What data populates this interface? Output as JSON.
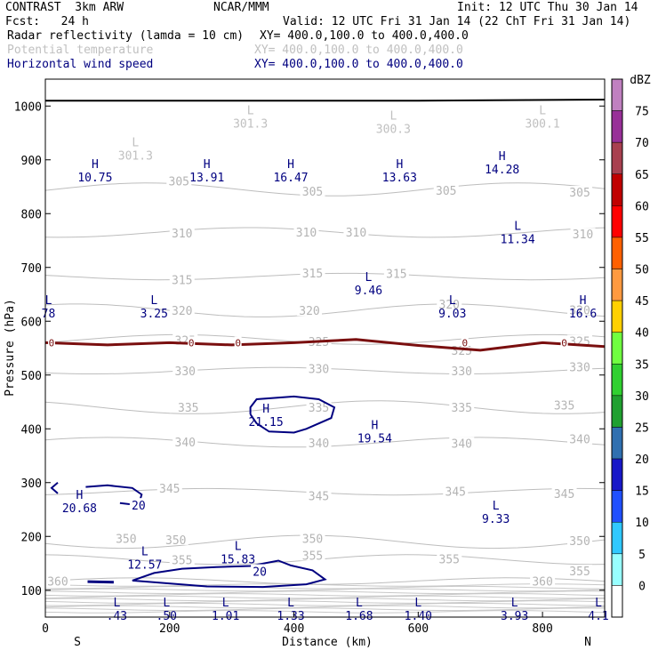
{
  "header": {
    "title": "CONTRAST  3km ARW",
    "center": "NCAR/MMM",
    "init": "Init: 12 UTC Thu 30 Jan 14",
    "fcst": "Fcst:   24 h",
    "valid": "Valid: 12 UTC Fri 31 Jan 14 (22 ChT Fri 31 Jan 14)",
    "fields": [
      {
        "name": "Radar reflectivity (lamda = 10 cm)",
        "xy": "XY= 400.0,100.0 to 400.0,400.0",
        "color": "#000000"
      },
      {
        "name": "Potential temperature",
        "xy": "XY= 400.0,100.0 to 400.0,400.0",
        "color": "#c0c0c0"
      },
      {
        "name": "Horizontal wind speed",
        "xy": "XY= 400.0,100.0 to 400.0,400.0",
        "color": "#000080"
      }
    ]
  },
  "chart_data": {
    "type": "contour-cross-section",
    "xlabel": "Distance (km)",
    "ylabel": "Pressure (hPa)",
    "xlim": [
      0,
      900
    ],
    "ylim": [
      1050,
      50
    ],
    "x_ticks": [
      "0",
      "200",
      "400",
      "600",
      "800"
    ],
    "y_ticks": [
      "100",
      "200",
      "300",
      "400",
      "500",
      "600",
      "700",
      "800",
      "900",
      "1000"
    ],
    "endpoints": {
      "left": "S",
      "right": "N"
    },
    "theta_contours": [
      {
        "label": "360",
        "p": 117
      },
      {
        "label": "355",
        "p": 157
      },
      {
        "label": "350",
        "p": 190
      },
      {
        "label": "345",
        "p": 283
      },
      {
        "label": "340",
        "p": 375
      },
      {
        "label": "335",
        "p": 440
      },
      {
        "label": "330",
        "p": 508
      },
      {
        "label": "325",
        "p": 566
      },
      {
        "label": "320",
        "p": 620
      },
      {
        "label": "315",
        "p": 683
      },
      {
        "label": "310",
        "p": 765
      },
      {
        "label": "305",
        "p": 845
      }
    ],
    "theta_labels": [
      {
        "text": "360",
        "x": 20,
        "p": 117
      },
      {
        "text": "360",
        "x": 800,
        "p": 117
      },
      {
        "text": "355",
        "x": 220,
        "p": 157
      },
      {
        "text": "355",
        "x": 430,
        "p": 165
      },
      {
        "text": "355",
        "x": 650,
        "p": 158
      },
      {
        "text": "355",
        "x": 860,
        "p": 136
      },
      {
        "text": "350",
        "x": 130,
        "p": 196
      },
      {
        "text": "350",
        "x": 210,
        "p": 194
      },
      {
        "text": "350",
        "x": 430,
        "p": 196
      },
      {
        "text": "350",
        "x": 860,
        "p": 192
      },
      {
        "text": "345",
        "x": 200,
        "p": 290
      },
      {
        "text": "345",
        "x": 440,
        "p": 276
      },
      {
        "text": "345",
        "x": 660,
        "p": 284
      },
      {
        "text": "345",
        "x": 835,
        "p": 280
      },
      {
        "text": "340",
        "x": 225,
        "p": 376
      },
      {
        "text": "340",
        "x": 440,
        "p": 374
      },
      {
        "text": "340",
        "x": 670,
        "p": 373
      },
      {
        "text": "340",
        "x": 860,
        "p": 381
      },
      {
        "text": "335",
        "x": 230,
        "p": 440
      },
      {
        "text": "335",
        "x": 440,
        "p": 440
      },
      {
        "text": "335",
        "x": 670,
        "p": 440
      },
      {
        "text": "335",
        "x": 835,
        "p": 444
      },
      {
        "text": "330",
        "x": 225,
        "p": 508
      },
      {
        "text": "330",
        "x": 440,
        "p": 512
      },
      {
        "text": "330",
        "x": 670,
        "p": 508
      },
      {
        "text": "330",
        "x": 860,
        "p": 515
      },
      {
        "text": "325",
        "x": 225,
        "p": 565
      },
      {
        "text": "325",
        "x": 440,
        "p": 562
      },
      {
        "text": "325",
        "x": 670,
        "p": 546
      },
      {
        "text": "325",
        "x": 860,
        "p": 563
      },
      {
        "text": "320",
        "x": 220,
        "p": 620
      },
      {
        "text": "320",
        "x": 425,
        "p": 620
      },
      {
        "text": "320",
        "x": 650,
        "p": 632
      },
      {
        "text": "320",
        "x": 860,
        "p": 621
      },
      {
        "text": "315",
        "x": 220,
        "p": 677
      },
      {
        "text": "315",
        "x": 430,
        "p": 690
      },
      {
        "text": "315",
        "x": 565,
        "p": 689
      },
      {
        "text": "310",
        "x": 220,
        "p": 764
      },
      {
        "text": "310",
        "x": 420,
        "p": 766
      },
      {
        "text": "310",
        "x": 500,
        "p": 766
      },
      {
        "text": "310",
        "x": 865,
        "p": 762
      },
      {
        "text": "305",
        "x": 215,
        "p": 861
      },
      {
        "text": "305",
        "x": 430,
        "p": 842
      },
      {
        "text": "305",
        "x": 645,
        "p": 843
      },
      {
        "text": "305",
        "x": 860,
        "p": 840
      }
    ],
    "extrema": [
      {
        "kind": "L",
        "value": ".43",
        "x": 115,
        "p": 70,
        "color": "#000080"
      },
      {
        "kind": "L",
        "value": ".50",
        "x": 195,
        "p": 70,
        "color": "#000080"
      },
      {
        "kind": "L",
        "value": "1.01",
        "x": 290,
        "p": 70,
        "color": "#000080"
      },
      {
        "kind": "L",
        "value": "1.33",
        "x": 395,
        "p": 70,
        "color": "#000080"
      },
      {
        "kind": "L",
        "value": "1.68",
        "x": 505,
        "p": 70,
        "color": "#000080"
      },
      {
        "kind": "L",
        "value": "1.40",
        "x": 600,
        "p": 70,
        "color": "#000080"
      },
      {
        "kind": "L",
        "value": "3.93",
        "x": 755,
        "p": 70,
        "color": "#000080"
      },
      {
        "kind": "L",
        "value": "4.1",
        "x": 890,
        "p": 70,
        "color": "#000080"
      },
      {
        "kind": "L",
        "value": "12.57",
        "x": 160,
        "p": 165,
        "color": "#000080"
      },
      {
        "kind": "L",
        "value": "15.83",
        "x": 310,
        "p": 175,
        "color": "#000080"
      },
      {
        "kind": "H",
        "value": "20.68",
        "x": 55,
        "p": 270,
        "color": "#000080"
      },
      {
        "kind": "L",
        "value": "9.33",
        "x": 725,
        "p": 250,
        "color": "#000080"
      },
      {
        "kind": "H",
        "value": "19.54",
        "x": 530,
        "p": 400,
        "color": "#000080"
      },
      {
        "kind": "H",
        "value": "21.15",
        "x": 355,
        "p": 430,
        "color": "#000080"
      },
      {
        "kind": "L",
        "value": "78",
        "x": 5,
        "p": 632,
        "color": "#000080"
      },
      {
        "kind": "L",
        "value": "3.25",
        "x": 175,
        "p": 632,
        "color": "#000080"
      },
      {
        "kind": "L",
        "value": "9.03",
        "x": 655,
        "p": 632,
        "color": "#000080"
      },
      {
        "kind": "H",
        "value": "16.6",
        "x": 865,
        "p": 632,
        "color": "#000080"
      },
      {
        "kind": "L",
        "value": "9.46",
        "x": 520,
        "p": 675,
        "color": "#000080"
      },
      {
        "kind": "L",
        "value": "11.34",
        "x": 760,
        "p": 770,
        "color": "#000080"
      },
      {
        "kind": "H",
        "value": "10.75",
        "x": 80,
        "p": 885,
        "color": "#000080"
      },
      {
        "kind": "H",
        "value": "13.91",
        "x": 260,
        "p": 885,
        "color": "#000080"
      },
      {
        "kind": "H",
        "value": "16.47",
        "x": 395,
        "p": 885,
        "color": "#000080"
      },
      {
        "kind": "H",
        "value": "13.63",
        "x": 570,
        "p": 885,
        "color": "#000080"
      },
      {
        "kind": "H",
        "value": "14.28",
        "x": 735,
        "p": 900,
        "color": "#000080"
      },
      {
        "kind": "L",
        "value": "301.3",
        "x": 145,
        "p": 925,
        "color": "#c0c0c0"
      },
      {
        "kind": "L",
        "value": "301.3",
        "x": 330,
        "p": 985,
        "color": "#c0c0c0"
      },
      {
        "kind": "L",
        "value": "300.3",
        "x": 560,
        "p": 975,
        "color": "#c0c0c0"
      },
      {
        "kind": "L",
        "value": "300.1",
        "x": 800,
        "p": 985,
        "color": "#c0c0c0"
      }
    ],
    "wind_contours": [
      {
        "label": "20",
        "points": [
          [
            140,
            118
          ],
          [
            260,
            107
          ],
          [
            350,
            106
          ],
          [
            420,
            111
          ],
          [
            450,
            120
          ],
          [
            430,
            137
          ],
          [
            395,
            146
          ],
          [
            375,
            155
          ],
          [
            330,
            145
          ],
          [
            275,
            143
          ],
          [
            220,
            140
          ],
          [
            175,
            132
          ],
          [
            140,
            118
          ]
        ]
      },
      {
        "label": "20",
        "points": [
          [
            120,
            262
          ],
          [
            150,
            258
          ],
          [
            155,
            278
          ],
          [
            140,
            290
          ],
          [
            100,
            295
          ],
          [
            65,
            292
          ]
        ]
      },
      {
        "label": "20",
        "points": [
          [
            20,
            280
          ],
          [
            10,
            290
          ],
          [
            20,
            300
          ]
        ]
      },
      {
        "label": "",
        "points": [
          [
            330,
            427
          ],
          [
            340,
            410
          ],
          [
            360,
            395
          ],
          [
            400,
            393
          ],
          [
            420,
            400
          ],
          [
            460,
            420
          ],
          [
            465,
            440
          ],
          [
            440,
            455
          ],
          [
            400,
            460
          ],
          [
            340,
            455
          ],
          [
            330,
            440
          ],
          [
            330,
            427
          ]
        ]
      },
      {
        "label": "",
        "points": [
          [
            68,
            116
          ],
          [
            110,
            115
          ]
        ]
      }
    ],
    "zero_line": {
      "label": "0",
      "points": [
        [
          0,
          560
        ],
        [
          100,
          556
        ],
        [
          200,
          560
        ],
        [
          300,
          556
        ],
        [
          400,
          560
        ],
        [
          500,
          566
        ],
        [
          600,
          555
        ],
        [
          700,
          546
        ],
        [
          800,
          560
        ],
        [
          900,
          553
        ]
      ]
    },
    "surface": {
      "points": [
        [
          0,
          1010
        ],
        [
          300,
          1010
        ],
        [
          600,
          1010
        ],
        [
          900,
          1012
        ]
      ]
    },
    "colorbar": {
      "unit": "dBZ",
      "levels": [
        "-5",
        "0",
        "5",
        "10",
        "15",
        "20",
        "25",
        "30",
        "35",
        "40",
        "45",
        "50",
        "55",
        "60",
        "65",
        "70",
        "75"
      ],
      "tick_labels": [
        "0",
        "5",
        "10",
        "15",
        "20",
        "25",
        "30",
        "35",
        "40",
        "45",
        "50",
        "55",
        "60",
        "65",
        "70",
        "75"
      ],
      "colors": [
        "#ffffff",
        "#98ffff",
        "#30c8ff",
        "#2050ff",
        "#1818c8",
        "#3070b0",
        "#20a030",
        "#30d030",
        "#70ff40",
        "#ffd000",
        "#ff9a40",
        "#ff6000",
        "#ff0000",
        "#c00000",
        "#a84050",
        "#983098",
        "#c080c0"
      ]
    }
  }
}
